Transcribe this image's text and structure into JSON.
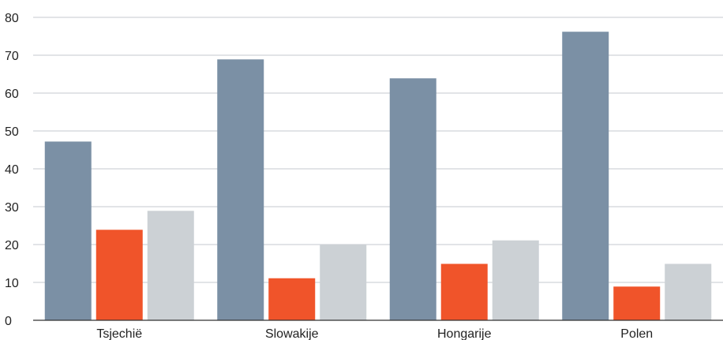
{
  "chart_data": {
    "type": "bar",
    "title": "",
    "xlabel": "",
    "ylabel": "",
    "categories": [
      "Tsjechië",
      "Slowakije",
      "Hongarije",
      "Polen"
    ],
    "series": [
      {
        "values": [
          47.2,
          68.9,
          63.9,
          76.2
        ],
        "color": "#7b90a5"
      },
      {
        "values": [
          23.9,
          11.1,
          14.9,
          8.9
        ],
        "color": "#f0542a"
      },
      {
        "values": [
          28.9,
          20.0,
          21.1,
          14.9
        ],
        "color": "#ccd1d5"
      }
    ],
    "ylim": [
      0,
      80
    ],
    "yticks": [
      0,
      10,
      20,
      30,
      40,
      50,
      60,
      70,
      80
    ],
    "grid": true,
    "legend": "none"
  }
}
